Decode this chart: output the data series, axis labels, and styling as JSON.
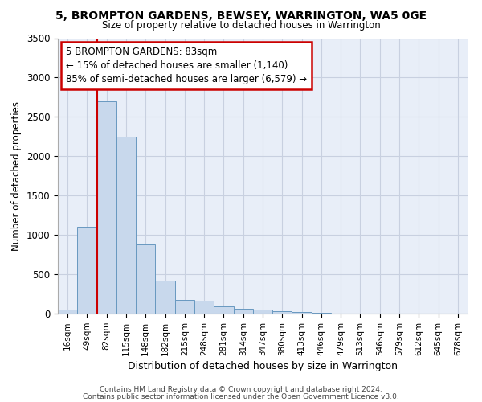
{
  "title1": "5, BROMPTON GARDENS, BEWSEY, WARRINGTON, WA5 0GE",
  "title2": "Size of property relative to detached houses in Warrington",
  "xlabel": "Distribution of detached houses by size in Warrington",
  "ylabel": "Number of detached properties",
  "bin_labels": [
    "16sqm",
    "49sqm",
    "82sqm",
    "115sqm",
    "148sqm",
    "182sqm",
    "215sqm",
    "248sqm",
    "281sqm",
    "314sqm",
    "347sqm",
    "380sqm",
    "413sqm",
    "446sqm",
    "479sqm",
    "513sqm",
    "546sqm",
    "579sqm",
    "612sqm",
    "645sqm",
    "678sqm"
  ],
  "bar_heights": [
    50,
    1100,
    2700,
    2250,
    880,
    420,
    175,
    165,
    90,
    60,
    50,
    30,
    20,
    10,
    5,
    2,
    1,
    0,
    0,
    0,
    0
  ],
  "bar_color": "#c8d8ec",
  "bar_edge_color": "#6898c0",
  "grid_color": "#c8d0e0",
  "background_color": "#e8eef8",
  "annotation_line1": "5 BROMPTON GARDENS: 83sqm",
  "annotation_line2": "← 15% of detached houses are smaller (1,140)",
  "annotation_line3": "85% of semi-detached houses are larger (6,579) →",
  "red_line_x": 2.0,
  "annotation_box_color": "#ffffff",
  "annotation_box_edge_color": "#cc0000",
  "ylim": [
    0,
    3500
  ],
  "yticks": [
    0,
    500,
    1000,
    1500,
    2000,
    2500,
    3000,
    3500
  ],
  "footer1": "Contains HM Land Registry data © Crown copyright and database right 2024.",
  "footer2": "Contains public sector information licensed under the Open Government Licence v3.0."
}
